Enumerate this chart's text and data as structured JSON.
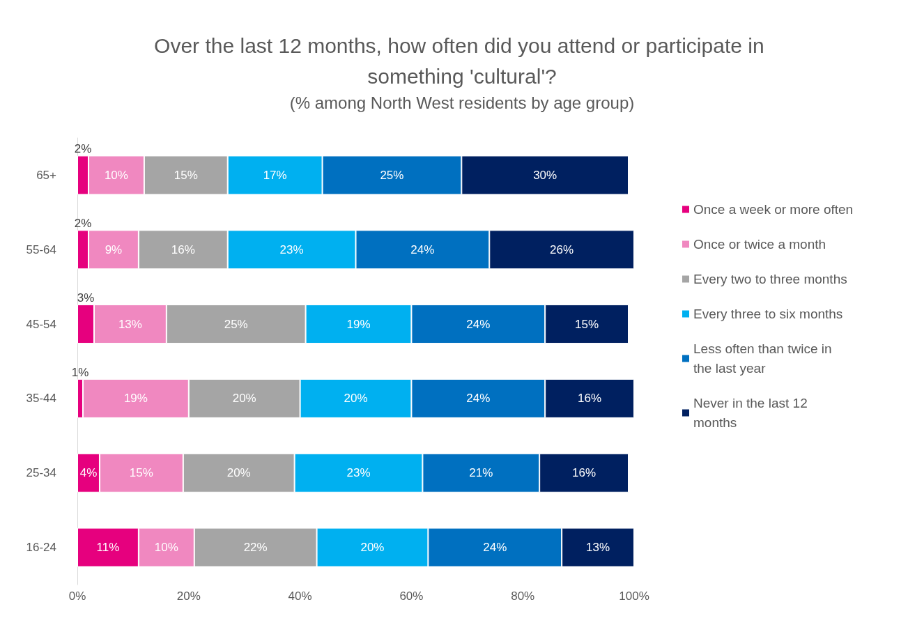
{
  "chart_data": {
    "type": "bar",
    "orientation": "horizontal",
    "stacked": true,
    "title": "Over the last 12 months, how often did you attend or participate in something 'cultural'?",
    "subtitle": "(% among North West residents by age group)",
    "categories": [
      "65+",
      "55-64",
      "45-54",
      "35-44",
      "25-34",
      "16-24"
    ],
    "series": [
      {
        "name": "Once a week or more often",
        "color": "#e6007e",
        "values": [
          2,
          2,
          3,
          1,
          4,
          11
        ],
        "value_labels": [
          "2%",
          "2%",
          "3%",
          "1%",
          "4%",
          "11%"
        ]
      },
      {
        "name": "Once or twice a month",
        "color": "#f088c0",
        "values": [
          10,
          9,
          13,
          19,
          15,
          10
        ],
        "value_labels": [
          "10%",
          "9%",
          "13%",
          "19%",
          "15%",
          "10%"
        ]
      },
      {
        "name": "Every two to three months",
        "color": "#a5a5a5",
        "values": [
          15,
          16,
          25,
          20,
          20,
          22
        ],
        "value_labels": [
          "15%",
          "16%",
          "25%",
          "20%",
          "20%",
          "22%"
        ]
      },
      {
        "name": "Every three to six months",
        "color": "#00b0f0",
        "values": [
          17,
          23,
          19,
          20,
          23,
          20
        ],
        "value_labels": [
          "17%",
          "23%",
          "19%",
          "20%",
          "23%",
          "20%"
        ]
      },
      {
        "name": "Less often than twice in the last year",
        "color": "#0070c0",
        "values": [
          25,
          24,
          24,
          24,
          21,
          24
        ],
        "value_labels": [
          "25%",
          "24%",
          "24%",
          "24%",
          "21%",
          "24%"
        ]
      },
      {
        "name": "Never in the last 12 months",
        "color": "#002060",
        "values": [
          30,
          26,
          15,
          16,
          16,
          13
        ],
        "value_labels": [
          "30%",
          "26%",
          "15%",
          "16%",
          "16%",
          "13%"
        ]
      }
    ],
    "xlim": [
      0,
      100
    ],
    "xticks": [
      {
        "value": 0,
        "label": "0%"
      },
      {
        "value": 20,
        "label": "20%"
      },
      {
        "value": 40,
        "label": "40%"
      },
      {
        "value": 60,
        "label": "60%"
      },
      {
        "value": 80,
        "label": "80%"
      },
      {
        "value": 100,
        "label": "100%"
      }
    ],
    "grid": false,
    "legend": "right"
  }
}
